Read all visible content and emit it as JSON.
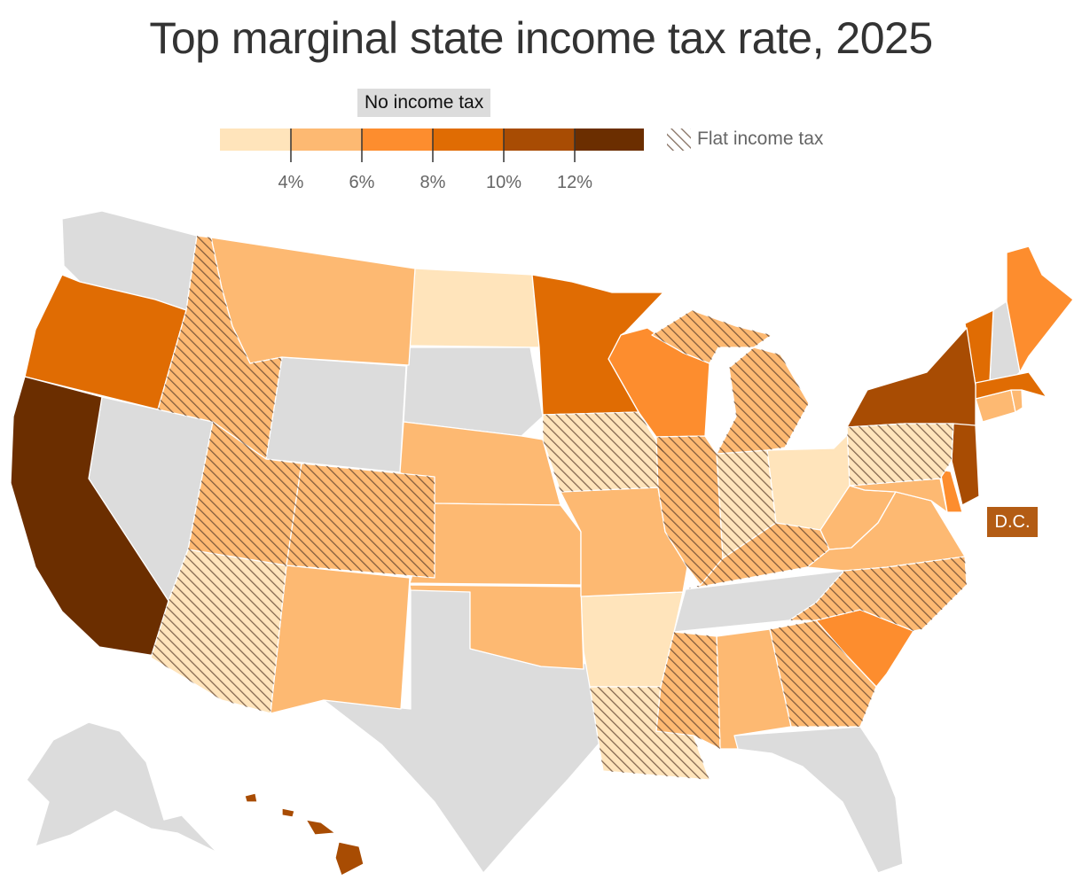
{
  "title": "Top marginal state income tax rate, 2025",
  "legend": {
    "no_income_tax": "No income tax",
    "flat_income_tax": "Flat income tax",
    "bins": [
      {
        "min": 0,
        "max": 4,
        "color": "#ffe4bb"
      },
      {
        "min": 4,
        "max": 6,
        "color": "#fdb972"
      },
      {
        "min": 6,
        "max": 8,
        "color": "#fd8d2e"
      },
      {
        "min": 8,
        "max": 10,
        "color": "#e06c03"
      },
      {
        "min": 10,
        "max": 12,
        "color": "#a84c03"
      },
      {
        "min": 12,
        "max": 14,
        "color": "#6b2e00"
      }
    ],
    "ticks": [
      "4%",
      "6%",
      "8%",
      "10%",
      "12%"
    ]
  },
  "colors": {
    "no_tax": "#dcdcdc",
    "hatch": "#5a3e2b",
    "dc_badge": "#b35c14",
    "title": "#333333"
  },
  "dc_label": "D.C.",
  "states": [
    {
      "abbr": "WA",
      "bin": "none",
      "flat": false
    },
    {
      "abbr": "OR",
      "bin": "8-10",
      "flat": false
    },
    {
      "abbr": "CA",
      "bin": "12+",
      "flat": false
    },
    {
      "abbr": "NV",
      "bin": "none",
      "flat": false
    },
    {
      "abbr": "ID",
      "bin": "4-6",
      "flat": true
    },
    {
      "abbr": "MT",
      "bin": "4-6",
      "flat": false
    },
    {
      "abbr": "WY",
      "bin": "none",
      "flat": false
    },
    {
      "abbr": "UT",
      "bin": "4-6",
      "flat": true
    },
    {
      "abbr": "AZ",
      "bin": "0-4",
      "flat": true
    },
    {
      "abbr": "CO",
      "bin": "4-6",
      "flat": true
    },
    {
      "abbr": "NM",
      "bin": "4-6",
      "flat": false
    },
    {
      "abbr": "ND",
      "bin": "0-4",
      "flat": false
    },
    {
      "abbr": "SD",
      "bin": "none",
      "flat": false
    },
    {
      "abbr": "NE",
      "bin": "4-6",
      "flat": false
    },
    {
      "abbr": "KS",
      "bin": "4-6",
      "flat": false
    },
    {
      "abbr": "OK",
      "bin": "4-6",
      "flat": false
    },
    {
      "abbr": "TX",
      "bin": "none",
      "flat": false
    },
    {
      "abbr": "MN",
      "bin": "8-10",
      "flat": false
    },
    {
      "abbr": "IA",
      "bin": "0-4",
      "flat": true
    },
    {
      "abbr": "MO",
      "bin": "4-6",
      "flat": false
    },
    {
      "abbr": "AR",
      "bin": "0-4",
      "flat": false
    },
    {
      "abbr": "LA",
      "bin": "0-4",
      "flat": true
    },
    {
      "abbr": "WI",
      "bin": "6-8",
      "flat": false
    },
    {
      "abbr": "IL",
      "bin": "4-6",
      "flat": true
    },
    {
      "abbr": "MI",
      "bin": "4-6",
      "flat": true
    },
    {
      "abbr": "IN",
      "bin": "0-4",
      "flat": true
    },
    {
      "abbr": "OH",
      "bin": "0-4",
      "flat": false
    },
    {
      "abbr": "KY",
      "bin": "4-6",
      "flat": true
    },
    {
      "abbr": "TN",
      "bin": "none",
      "flat": false
    },
    {
      "abbr": "MS",
      "bin": "4-6",
      "flat": true
    },
    {
      "abbr": "AL",
      "bin": "4-6",
      "flat": false
    },
    {
      "abbr": "GA",
      "bin": "4-6",
      "flat": true
    },
    {
      "abbr": "FL",
      "bin": "none",
      "flat": false
    },
    {
      "abbr": "SC",
      "bin": "6-8",
      "flat": false
    },
    {
      "abbr": "NC",
      "bin": "4-6",
      "flat": true
    },
    {
      "abbr": "VA",
      "bin": "4-6",
      "flat": false
    },
    {
      "abbr": "WV",
      "bin": "4-6",
      "flat": false
    },
    {
      "abbr": "PA",
      "bin": "0-4",
      "flat": true
    },
    {
      "abbr": "NY",
      "bin": "10-12",
      "flat": false
    },
    {
      "abbr": "VT",
      "bin": "8-10",
      "flat": false
    },
    {
      "abbr": "NH",
      "bin": "none",
      "flat": false
    },
    {
      "abbr": "ME",
      "bin": "6-8",
      "flat": false
    },
    {
      "abbr": "MA",
      "bin": "8-10",
      "flat": false
    },
    {
      "abbr": "RI",
      "bin": "4-6",
      "flat": false
    },
    {
      "abbr": "CT",
      "bin": "4-6",
      "flat": false
    },
    {
      "abbr": "NJ",
      "bin": "10-12",
      "flat": false
    },
    {
      "abbr": "DE",
      "bin": "6-8",
      "flat": false
    },
    {
      "abbr": "MD",
      "bin": "4-6",
      "flat": false
    },
    {
      "abbr": "DC",
      "bin": "10-12",
      "flat": false
    },
    {
      "abbr": "AK",
      "bin": "none",
      "flat": false
    },
    {
      "abbr": "HI",
      "bin": "10-12",
      "flat": false
    }
  ]
}
